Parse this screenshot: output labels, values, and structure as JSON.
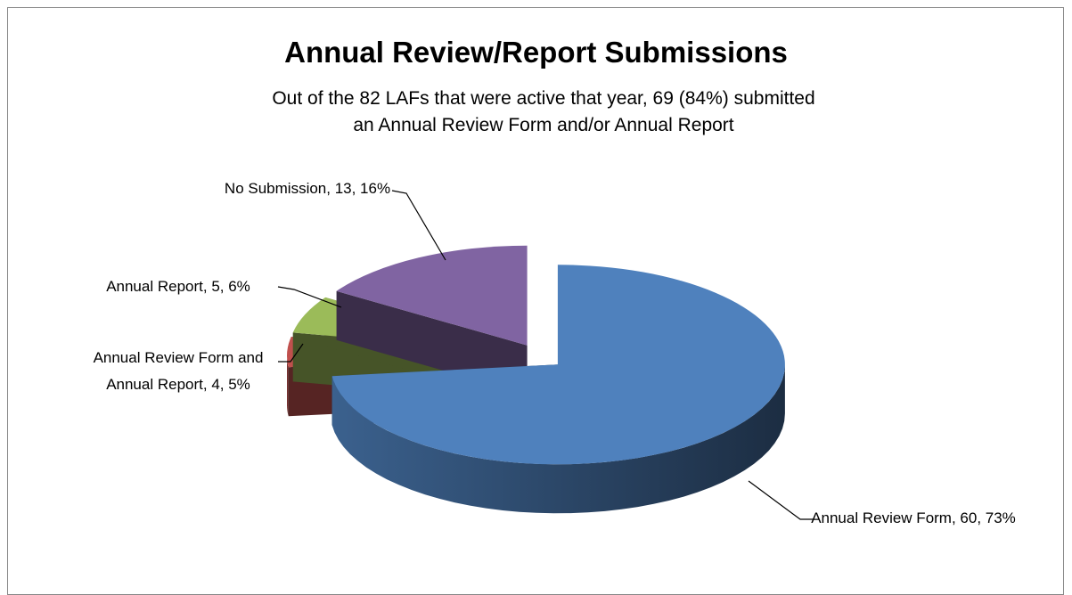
{
  "chart_data": {
    "type": "pie3d",
    "title": "Annual Review/Report Submissions",
    "subtitle": "Out of the 82 LAFs that were active that year, 69 (84%) submitted an Annual Review Form and/or Annual Report",
    "categories": [
      "Annual Review Form",
      "Annual Review Form and Annual Report",
      "Annual Report",
      "No Submission"
    ],
    "values": [
      60,
      4,
      5,
      13
    ],
    "value_labels": [
      "Annual Review Form, 60, 73%",
      "Annual Review Form and Annual Report, 4, 5%",
      "Annual Report, 5, 6%",
      "No Submission, 13, 16%"
    ],
    "colors": [
      "#4f81bd",
      "#c0504d",
      "#9bbb59",
      "#8064a2"
    ]
  }
}
